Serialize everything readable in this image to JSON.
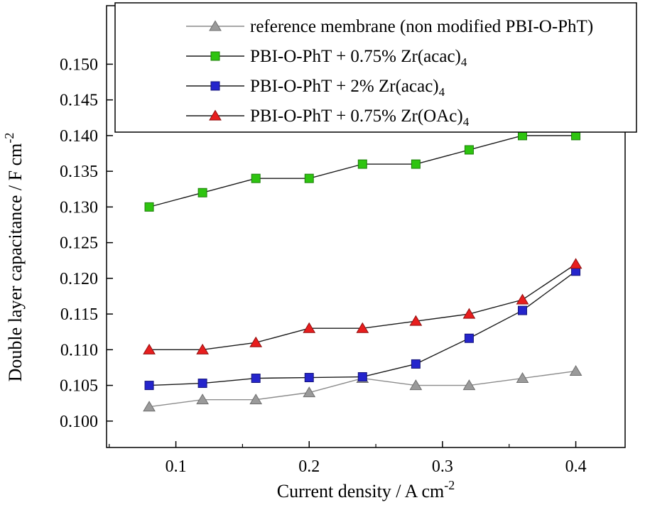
{
  "chart_data": {
    "type": "line",
    "title": "",
    "xlabel": {
      "text": "Current density / A cm",
      "sup": "-2"
    },
    "ylabel": {
      "text": "Double layer capacitance / F cm",
      "sup": "-2"
    },
    "x": [
      0.08,
      0.12,
      0.16,
      0.2,
      0.24,
      0.28,
      0.32,
      0.36,
      0.4
    ],
    "xlim": [
      0.048,
      0.437
    ],
    "ylim": [
      0.0963,
      0.1582
    ],
    "x_ticks": [
      0.1,
      0.2,
      0.3,
      0.4
    ],
    "x_minor_ticks": [
      0.05,
      0.15,
      0.25,
      0.35
    ],
    "y_ticks": [
      0.1,
      0.105,
      0.11,
      0.115,
      0.12,
      0.125,
      0.13,
      0.135,
      0.14,
      0.145,
      0.15
    ],
    "grid": false,
    "legend_position": "top",
    "axis_color": "#000000",
    "series": [
      {
        "name": "reference membrane (non modified PBI-O-PhT)",
        "name_sub": "",
        "marker": "triangle",
        "marker_color": "#9a9a9a",
        "marker_edge": "#6e6e6e",
        "line_color": "#8c8c8c",
        "values": [
          0.102,
          0.103,
          0.103,
          0.104,
          0.106,
          0.105,
          0.105,
          0.106,
          0.107
        ]
      },
      {
        "name": "PBI-O-PhT + 0.75% Zr(acac)",
        "name_sub": "4",
        "marker": "square",
        "marker_color": "#2ec410",
        "marker_edge": "#1d7d0a",
        "line_color": "#1a1a1a",
        "values": [
          0.13,
          0.132,
          0.134,
          0.134,
          0.136,
          0.136,
          0.138,
          0.14,
          0.14
        ]
      },
      {
        "name": "PBI-O-PhT + 2% Zr(acac)",
        "name_sub": "4",
        "marker": "square",
        "marker_color": "#2525cc",
        "marker_edge": "#14147a",
        "line_color": "#1a1a1a",
        "values": [
          0.105,
          0.1053,
          0.106,
          0.1061,
          0.1062,
          0.108,
          0.1116,
          0.1155,
          0.121
        ]
      },
      {
        "name": "PBI-O-PhT + 0.75% Zr(OAc)",
        "name_sub": "4",
        "marker": "triangle",
        "marker_color": "#e81e1e",
        "marker_edge": "#8f0f0f",
        "line_color": "#1a1a1a",
        "values": [
          0.11,
          0.11,
          0.111,
          0.113,
          0.113,
          0.114,
          0.115,
          0.117,
          0.122
        ]
      }
    ]
  }
}
